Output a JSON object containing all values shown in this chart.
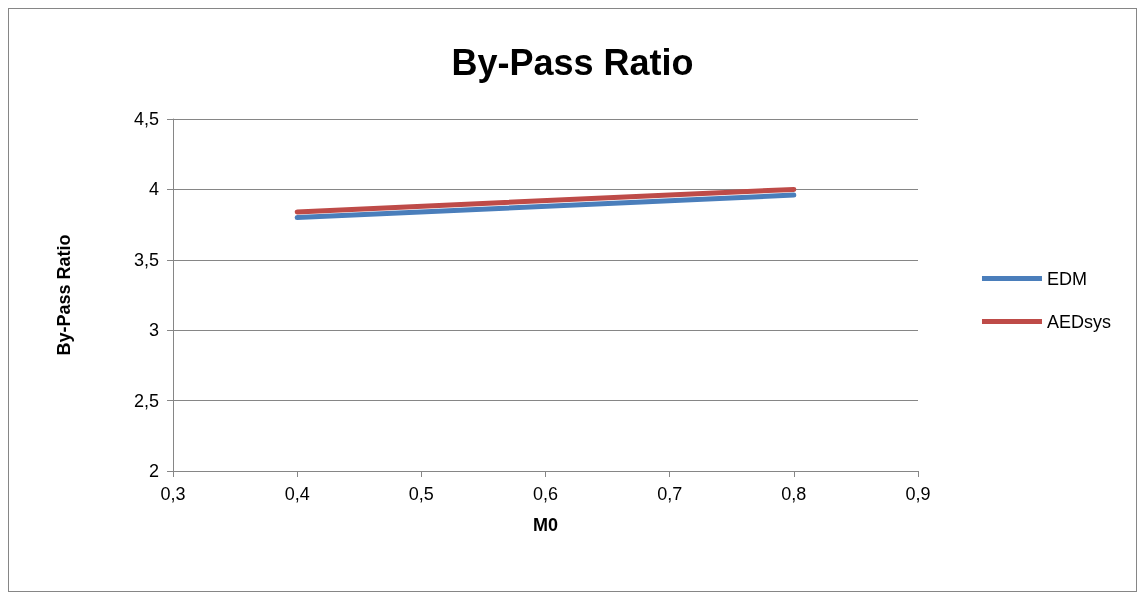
{
  "chart_data": {
    "type": "line",
    "title": "By-Pass Ratio",
    "xlabel": "M0",
    "ylabel": "By-Pass Ratio",
    "x": [
      0.4,
      0.8
    ],
    "series": [
      {
        "name": "EDM",
        "color": "#4a7ebb",
        "values": [
          3.8,
          3.96
        ]
      },
      {
        "name": "AEDsys",
        "color": "#be4b48",
        "values": [
          3.84,
          4.0
        ]
      }
    ],
    "xlim": [
      0.3,
      0.9
    ],
    "xticks": [
      {
        "value": 0.3,
        "label": "0,3"
      },
      {
        "value": 0.4,
        "label": "0,4"
      },
      {
        "value": 0.5,
        "label": "0,5"
      },
      {
        "value": 0.6,
        "label": "0,6"
      },
      {
        "value": 0.7,
        "label": "0,7"
      },
      {
        "value": 0.8,
        "label": "0,8"
      },
      {
        "value": 0.9,
        "label": "0,9"
      }
    ],
    "ylim": [
      2,
      4.5
    ],
    "yticks": [
      2,
      {
        "value": 2.5,
        "label": "2,5"
      },
      3,
      {
        "value": 3.5,
        "label": "3,5"
      },
      4,
      {
        "value": 4.5,
        "label": "4,5"
      }
    ],
    "grid": "y",
    "legend": "right",
    "marker": "none",
    "line_style": "solid"
  }
}
